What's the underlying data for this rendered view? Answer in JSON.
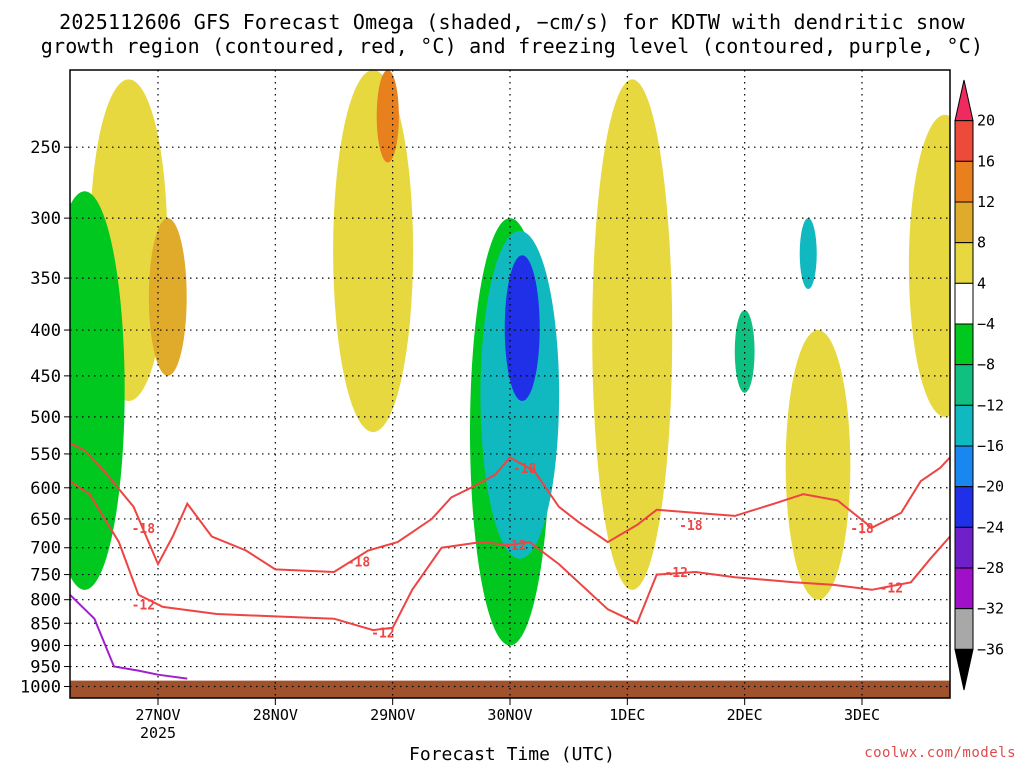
{
  "title": {
    "line1": "2025112606 GFS Forecast Omega (shaded, −cm/s) for KDTW with dendritic snow",
    "line2": "growth region (contoured, red, °C) and freezing level (contoured, purple, °C)"
  },
  "credit": "coolwx.com/models",
  "chart_data": {
    "type": "heatmap",
    "xlabel": "Forecast Time (UTC)",
    "ylabel": "",
    "x_axis": {
      "type": "time",
      "start": "2025-11-26T06:00Z",
      "end": "2025-12-03T18:00Z",
      "ticks": [
        {
          "label": "27NOV",
          "sublabel": "2025",
          "date": "2025-11-27T00:00Z"
        },
        {
          "label": "28NOV",
          "date": "2025-11-28T00:00Z"
        },
        {
          "label": "29NOV",
          "date": "2025-11-29T00:00Z"
        },
        {
          "label": "30NOV",
          "date": "2025-11-30T00:00Z"
        },
        {
          "label": "1DEC",
          "date": "2025-12-01T00:00Z"
        },
        {
          "label": "2DEC",
          "date": "2025-12-02T00:00Z"
        },
        {
          "label": "3DEC",
          "date": "2025-12-03T00:00Z"
        }
      ]
    },
    "y_axis": {
      "type": "log-pressure",
      "range": [
        1030,
        205
      ],
      "ticks": [
        250,
        300,
        350,
        400,
        450,
        500,
        550,
        600,
        650,
        700,
        750,
        800,
        850,
        900,
        950,
        1000
      ]
    },
    "grid": true,
    "colorbar": {
      "labels": [
        "20",
        "16",
        "12",
        "8",
        "4",
        "−4",
        "−8",
        "−12",
        "−16",
        "−20",
        "−24",
        "−28",
        "−32",
        "−36"
      ],
      "bands": [
        {
          "color": "#ee2a5e"
        },
        {
          "color": "#ec4a3a"
        },
        {
          "color": "#e8801e"
        },
        {
          "color": "#e0aa2a"
        },
        {
          "color": "#e8d840"
        },
        {
          "color": "#ffffff"
        },
        {
          "color": "#00c81e"
        },
        {
          "color": "#10c080"
        },
        {
          "color": "#10b8c0"
        },
        {
          "color": "#1888f0"
        },
        {
          "color": "#2030e8"
        },
        {
          "color": "#7020c8"
        },
        {
          "color": "#a010c8"
        },
        {
          "color": "#a8a8a8"
        },
        {
          "color": "#000000"
        }
      ]
    },
    "shading": [
      {
        "value": "4",
        "time": "2025-11-26T18:00Z",
        "p_top": 210,
        "p_bottom": 480,
        "color": "#e8d840"
      },
      {
        "value": "8",
        "time": "2025-11-27T02:00Z",
        "p_top": 300,
        "p_bottom": 450,
        "color": "#e0aa2a"
      },
      {
        "value": "-4",
        "time": "2025-11-26T09:00Z",
        "p_top": 280,
        "p_bottom": 780,
        "color": "#00c81e"
      },
      {
        "value": "4",
        "time": "2025-11-28T20:00Z",
        "p_top": 205,
        "p_bottom": 520,
        "color": "#e8d840"
      },
      {
        "value": "12",
        "time": "2025-11-28T23:00Z",
        "p_top": 205,
        "p_bottom": 260,
        "color": "#e8801e"
      },
      {
        "value": "-4",
        "time": "2025-11-30T00:00Z",
        "p_top": 300,
        "p_bottom": 900,
        "color": "#00c81e"
      },
      {
        "value": "-12",
        "time": "2025-11-30T02:00Z",
        "p_top": 310,
        "p_bottom": 720,
        "color": "#10b8c0"
      },
      {
        "value": "-20",
        "time": "2025-11-30T02:30Z",
        "p_top": 330,
        "p_bottom": 480,
        "color": "#2030e8"
      },
      {
        "value": "4",
        "time": "2025-12-01T01:00Z",
        "p_top": 210,
        "p_bottom": 780,
        "color": "#e8d840"
      },
      {
        "value": "-8",
        "time": "2025-12-02T00:00Z",
        "p_top": 380,
        "p_bottom": 470,
        "color": "#10c080"
      },
      {
        "value": "-12",
        "time": "2025-12-02T13:00Z",
        "p_top": 300,
        "p_bottom": 360,
        "color": "#10b8c0"
      },
      {
        "value": "4",
        "time": "2025-12-02T15:00Z",
        "p_top": 400,
        "p_bottom": 800,
        "color": "#e8d840"
      },
      {
        "value": "4",
        "time": "2025-12-03T17:00Z",
        "p_top": 230,
        "p_bottom": 500,
        "color": "#e8d840"
      }
    ],
    "series": [
      {
        "name": "-18",
        "color": "#ee4444",
        "labels": [
          {
            "time": "2025-11-26T21:00Z",
            "p": 665
          },
          {
            "time": "2025-11-28T17:00Z",
            "p": 725
          },
          {
            "time": "2025-11-30T03:00Z",
            "p": 570
          },
          {
            "time": "2025-12-01T13:00Z",
            "p": 660
          },
          {
            "time": "2025-12-03T00:00Z",
            "p": 665
          }
        ],
        "points": [
          {
            "time": "2025-11-26T06:00Z",
            "p": 535
          },
          {
            "time": "2025-11-26T09:00Z",
            "p": 545
          },
          {
            "time": "2025-11-26T13:00Z",
            "p": 575
          },
          {
            "time": "2025-11-26T19:00Z",
            "p": 630
          },
          {
            "time": "2025-11-27T00:00Z",
            "p": 730
          },
          {
            "time": "2025-11-27T03:00Z",
            "p": 680
          },
          {
            "time": "2025-11-27T06:00Z",
            "p": 625
          },
          {
            "time": "2025-11-27T11:00Z",
            "p": 680
          },
          {
            "time": "2025-11-27T18:00Z",
            "p": 705
          },
          {
            "time": "2025-11-28T00:00Z",
            "p": 740
          },
          {
            "time": "2025-11-28T12:00Z",
            "p": 745
          },
          {
            "time": "2025-11-28T19:00Z",
            "p": 705
          },
          {
            "time": "2025-11-29T01:00Z",
            "p": 690
          },
          {
            "time": "2025-11-29T08:00Z",
            "p": 650
          },
          {
            "time": "2025-11-29T12:00Z",
            "p": 615
          },
          {
            "time": "2025-11-29T16:00Z",
            "p": 600
          },
          {
            "time": "2025-11-29T21:00Z",
            "p": 580
          },
          {
            "time": "2025-11-30T00:00Z",
            "p": 555
          },
          {
            "time": "2025-11-30T05:00Z",
            "p": 575
          },
          {
            "time": "2025-11-30T10:00Z",
            "p": 630
          },
          {
            "time": "2025-11-30T14:00Z",
            "p": 655
          },
          {
            "time": "2025-11-30T20:00Z",
            "p": 690
          },
          {
            "time": "2025-12-01T02:00Z",
            "p": 660
          },
          {
            "time": "2025-12-01T06:00Z",
            "p": 635
          },
          {
            "time": "2025-12-01T14:00Z",
            "p": 640
          },
          {
            "time": "2025-12-01T22:00Z",
            "p": 645
          },
          {
            "time": "2025-12-02T06:00Z",
            "p": 625
          },
          {
            "time": "2025-12-02T12:00Z",
            "p": 610
          },
          {
            "time": "2025-12-02T19:00Z",
            "p": 620
          },
          {
            "time": "2025-12-03T02:00Z",
            "p": 665
          },
          {
            "time": "2025-12-03T08:00Z",
            "p": 640
          },
          {
            "time": "2025-12-03T12:00Z",
            "p": 590
          },
          {
            "time": "2025-12-03T16:00Z",
            "p": 570
          },
          {
            "time": "2025-12-03T18:00Z",
            "p": 555
          }
        ]
      },
      {
        "name": "-12",
        "color": "#ee4444",
        "labels": [
          {
            "time": "2025-11-26T21:00Z",
            "p": 810
          },
          {
            "time": "2025-11-28T22:00Z",
            "p": 870
          },
          {
            "time": "2025-11-30T01:00Z",
            "p": 695
          },
          {
            "time": "2025-12-01T10:00Z",
            "p": 745
          },
          {
            "time": "2025-12-03T06:00Z",
            "p": 775
          }
        ],
        "points": [
          {
            "time": "2025-11-26T06:00Z",
            "p": 590
          },
          {
            "time": "2025-11-26T10:00Z",
            "p": 610
          },
          {
            "time": "2025-11-26T16:00Z",
            "p": 690
          },
          {
            "time": "2025-11-26T20:00Z",
            "p": 790
          },
          {
            "time": "2025-11-27T01:00Z",
            "p": 815
          },
          {
            "time": "2025-11-27T12:00Z",
            "p": 830
          },
          {
            "time": "2025-11-28T00:00Z",
            "p": 835
          },
          {
            "time": "2025-11-28T12:00Z",
            "p": 840
          },
          {
            "time": "2025-11-28T20:00Z",
            "p": 865
          },
          {
            "time": "2025-11-29T00:00Z",
            "p": 860
          },
          {
            "time": "2025-11-29T04:00Z",
            "p": 780
          },
          {
            "time": "2025-11-29T10:00Z",
            "p": 700
          },
          {
            "time": "2025-11-29T18:00Z",
            "p": 690
          },
          {
            "time": "2025-11-30T00:00Z",
            "p": 695
          },
          {
            "time": "2025-11-30T04:00Z",
            "p": 690
          },
          {
            "time": "2025-11-30T10:00Z",
            "p": 730
          },
          {
            "time": "2025-11-30T20:00Z",
            "p": 820
          },
          {
            "time": "2025-12-01T02:00Z",
            "p": 850
          },
          {
            "time": "2025-12-01T06:00Z",
            "p": 750
          },
          {
            "time": "2025-12-01T14:00Z",
            "p": 745
          },
          {
            "time": "2025-12-01T22:00Z",
            "p": 755
          },
          {
            "time": "2025-12-02T10:00Z",
            "p": 765
          },
          {
            "time": "2025-12-02T18:00Z",
            "p": 770
          },
          {
            "time": "2025-12-03T02:00Z",
            "p": 780
          },
          {
            "time": "2025-12-03T10:00Z",
            "p": 765
          },
          {
            "time": "2025-12-03T14:00Z",
            "p": 720
          },
          {
            "time": "2025-12-03T18:00Z",
            "p": 680
          }
        ]
      },
      {
        "name": "freezing level",
        "color": "#a020d0",
        "labels": [],
        "points": [
          {
            "time": "2025-11-26T06:00Z",
            "p": 790
          },
          {
            "time": "2025-11-26T11:00Z",
            "p": 840
          },
          {
            "time": "2025-11-26T15:00Z",
            "p": 950
          },
          {
            "time": "2025-11-26T20:00Z",
            "p": 960
          },
          {
            "time": "2025-11-27T00:00Z",
            "p": 970
          },
          {
            "time": "2025-11-27T06:00Z",
            "p": 980
          }
        ]
      }
    ],
    "surface": {
      "color": "#a0522d",
      "p_top": 985
    }
  }
}
